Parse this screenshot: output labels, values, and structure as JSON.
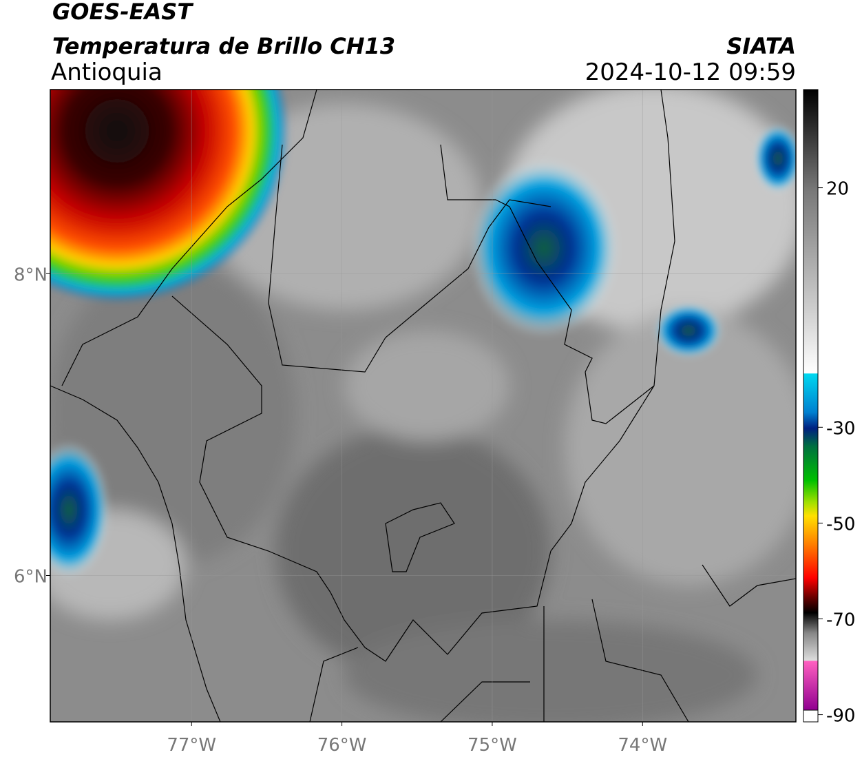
{
  "header": {
    "title": "GOES-EAST",
    "subtitle": "Temperatura de Brillo CH13",
    "region": "Antioquia",
    "source": "SIATA",
    "datetime": "2024-10-12 09:59"
  },
  "map": {
    "xlim": [
      -77.94,
      -72.98
    ],
    "ylim": [
      5.03,
      9.22
    ],
    "xticks": [
      {
        "value": -77,
        "label": "77°W"
      },
      {
        "value": -76,
        "label": "76°W"
      },
      {
        "value": -75,
        "label": "75°W"
      },
      {
        "value": -74,
        "label": "74°W"
      }
    ],
    "yticks": [
      {
        "value": 8,
        "label": "8°N"
      },
      {
        "value": 6,
        "label": "6°N"
      }
    ],
    "grid": true
  },
  "colorbar": {
    "lim": [
      -91.5,
      40.5
    ],
    "ticks": [
      20,
      -30,
      -50,
      -70,
      -90
    ]
  }
}
